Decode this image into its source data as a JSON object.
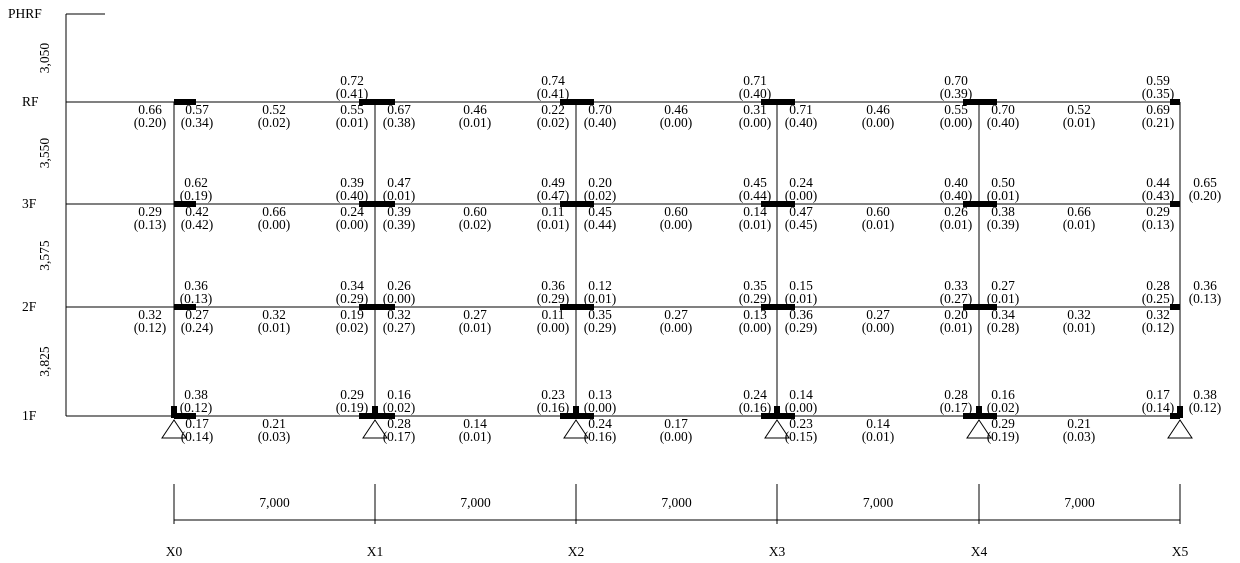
{
  "levels": [
    {
      "name": "PHRF"
    },
    {
      "name": "RF"
    },
    {
      "name": "3F"
    },
    {
      "name": "2F"
    },
    {
      "name": "1F"
    }
  ],
  "story_heights": [
    "3,050",
    "3,550",
    "3,575",
    "3,825"
  ],
  "grid_lines": [
    "X0",
    "X1",
    "X2",
    "X3",
    "X4",
    "X5"
  ],
  "spans": [
    "7,000",
    "7,000",
    "7,000",
    "7,000",
    "7,000"
  ],
  "floors": [
    {
      "level": "RF",
      "above": [
        {
          "v": "0.72",
          "p": "(0.41)"
        },
        {
          "v": "0.74",
          "p": "(0.41)"
        },
        {
          "v": "0.71",
          "p": "(0.40)"
        },
        {
          "v": "0.70",
          "p": "(0.39)"
        },
        {
          "v": "0.59",
          "p": "(0.35)"
        }
      ],
      "below": [
        {
          "v": "0.66",
          "p": "(0.20)"
        },
        {
          "v": "0.57",
          "p": "(0.34)"
        },
        {
          "v": "0.52",
          "p": "(0.02)"
        },
        {
          "v": "0.55",
          "p": "(0.01)"
        },
        {
          "v": "0.67",
          "p": "(0.38)"
        },
        {
          "v": "0.46",
          "p": "(0.01)"
        },
        {
          "v": "0.22",
          "p": "(0.02)"
        },
        {
          "v": "0.70",
          "p": "(0.40)"
        },
        {
          "v": "0.46",
          "p": "(0.00)"
        },
        {
          "v": "0.31",
          "p": "(0.00)"
        },
        {
          "v": "0.71",
          "p": "(0.40)"
        },
        {
          "v": "0.46",
          "p": "(0.00)"
        },
        {
          "v": "0.55",
          "p": "(0.00)"
        },
        {
          "v": "0.70",
          "p": "(0.40)"
        },
        {
          "v": "0.52",
          "p": "(0.01)"
        },
        {
          "v": "0.69",
          "p": "(0.21)"
        }
      ]
    },
    {
      "level": "3F",
      "above": [
        {
          "v": "0.62",
          "p": "(0.19)"
        },
        {
          "v": "0.39",
          "p": "(0.40)"
        },
        {
          "v": "0.47",
          "p": "(0.01)"
        },
        {
          "v": "0.49",
          "p": "(0.47)"
        },
        {
          "v": "0.20",
          "p": "(0.02)"
        },
        {
          "v": "0.45",
          "p": "(0.44)"
        },
        {
          "v": "0.24",
          "p": "(0.00)"
        },
        {
          "v": "0.40",
          "p": "(0.40)"
        },
        {
          "v": "0.50",
          "p": "(0.01)"
        },
        {
          "v": "0.44",
          "p": "(0.43)"
        },
        {
          "v": "0.65",
          "p": "(0.20)"
        }
      ],
      "below": [
        {
          "v": "0.29",
          "p": "(0.13)"
        },
        {
          "v": "0.42",
          "p": "(0.42)"
        },
        {
          "v": "0.66",
          "p": "(0.00)"
        },
        {
          "v": "0.24",
          "p": "(0.00)"
        },
        {
          "v": "0.39",
          "p": "(0.39)"
        },
        {
          "v": "0.60",
          "p": "(0.02)"
        },
        {
          "v": "0.11",
          "p": "(0.01)"
        },
        {
          "v": "0.45",
          "p": "(0.44)"
        },
        {
          "v": "0.60",
          "p": "(0.00)"
        },
        {
          "v": "0.14",
          "p": "(0.01)"
        },
        {
          "v": "0.47",
          "p": "(0.45)"
        },
        {
          "v": "0.60",
          "p": "(0.01)"
        },
        {
          "v": "0.26",
          "p": "(0.01)"
        },
        {
          "v": "0.38",
          "p": "(0.39)"
        },
        {
          "v": "0.66",
          "p": "(0.01)"
        },
        {
          "v": "0.29",
          "p": "(0.13)"
        }
      ]
    },
    {
      "level": "2F",
      "above": [
        {
          "v": "0.36",
          "p": "(0.13)"
        },
        {
          "v": "0.34",
          "p": "(0.29)"
        },
        {
          "v": "0.26",
          "p": "(0.00)"
        },
        {
          "v": "0.36",
          "p": "(0.29)"
        },
        {
          "v": "0.12",
          "p": "(0.01)"
        },
        {
          "v": "0.35",
          "p": "(0.29)"
        },
        {
          "v": "0.15",
          "p": "(0.01)"
        },
        {
          "v": "0.33",
          "p": "(0.27)"
        },
        {
          "v": "0.27",
          "p": "(0.01)"
        },
        {
          "v": "0.28",
          "p": "(0.25)"
        },
        {
          "v": "0.36",
          "p": "(0.13)"
        }
      ],
      "below": [
        {
          "v": "0.32",
          "p": "(0.12)"
        },
        {
          "v": "0.27",
          "p": "(0.24)"
        },
        {
          "v": "0.32",
          "p": "(0.01)"
        },
        {
          "v": "0.19",
          "p": "(0.02)"
        },
        {
          "v": "0.32",
          "p": "(0.27)"
        },
        {
          "v": "0.27",
          "p": "(0.01)"
        },
        {
          "v": "0.11",
          "p": "(0.00)"
        },
        {
          "v": "0.35",
          "p": "(0.29)"
        },
        {
          "v": "0.27",
          "p": "(0.00)"
        },
        {
          "v": "0.13",
          "p": "(0.00)"
        },
        {
          "v": "0.36",
          "p": "(0.29)"
        },
        {
          "v": "0.27",
          "p": "(0.00)"
        },
        {
          "v": "0.20",
          "p": "(0.01)"
        },
        {
          "v": "0.34",
          "p": "(0.28)"
        },
        {
          "v": "0.32",
          "p": "(0.01)"
        },
        {
          "v": "0.32",
          "p": "(0.12)"
        }
      ]
    },
    {
      "level": "1F",
      "above": [
        {
          "v": "0.38",
          "p": "(0.12)"
        },
        {
          "v": "0.29",
          "p": "(0.19)"
        },
        {
          "v": "0.16",
          "p": "(0.02)"
        },
        {
          "v": "0.23",
          "p": "(0.16)"
        },
        {
          "v": "0.13",
          "p": "(0.00)"
        },
        {
          "v": "0.24",
          "p": "(0.16)"
        },
        {
          "v": "0.14",
          "p": "(0.00)"
        },
        {
          "v": "0.28",
          "p": "(0.17)"
        },
        {
          "v": "0.16",
          "p": "(0.02)"
        },
        {
          "v": "0.17",
          "p": "(0.14)"
        },
        {
          "v": "0.38",
          "p": "(0.12)"
        }
      ],
      "below": [
        {
          "v": "0.17",
          "p": "(0.14)"
        },
        {
          "v": "0.21",
          "p": "(0.03)"
        },
        {
          "v": "0.28",
          "p": "(0.17)"
        },
        {
          "v": "0.14",
          "p": "(0.01)"
        },
        {
          "v": "0.24",
          "p": "(0.16)"
        },
        {
          "v": "0.17",
          "p": "(0.00)"
        },
        {
          "v": "0.23",
          "p": "(0.15)"
        },
        {
          "v": "0.14",
          "p": "(0.01)"
        },
        {
          "v": "0.29",
          "p": "(0.19)"
        },
        {
          "v": "0.21",
          "p": "(0.03)"
        }
      ]
    }
  ]
}
